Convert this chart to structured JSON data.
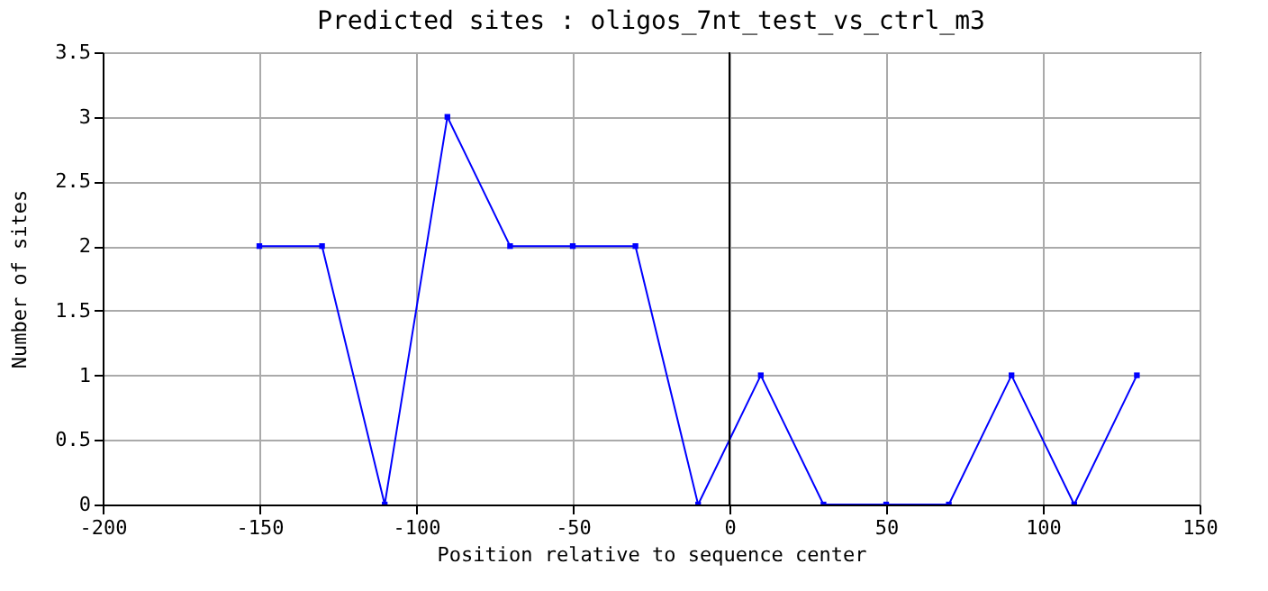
{
  "chart_data": {
    "type": "line",
    "title": "Predicted sites : oligos_7nt_test_vs_ctrl_m3",
    "xlabel": "Position relative to sequence center",
    "ylabel": "Number of sites",
    "x": [
      -150,
      -130,
      -110,
      -90,
      -70,
      -50,
      -30,
      -10,
      10,
      30,
      50,
      70,
      90,
      110,
      130
    ],
    "series": [
      {
        "color": "#0000ff",
        "values": [
          2,
          2,
          0,
          3,
          2,
          2,
          2,
          0,
          1,
          0,
          0,
          0,
          1,
          0,
          1
        ]
      }
    ],
    "xlim": [
      -200,
      150
    ],
    "xticks": [
      -200,
      -150,
      -100,
      -50,
      0,
      50,
      100,
      150
    ],
    "ylim": [
      0,
      3.5
    ],
    "yticks": [
      0,
      0.5,
      1,
      1.5,
      2,
      2.5,
      3,
      3.5
    ],
    "ref_lines": [
      {
        "axis": "x",
        "value": 0,
        "color": "#000000"
      }
    ],
    "grid": true,
    "marker": "square",
    "line_style": "solid"
  }
}
